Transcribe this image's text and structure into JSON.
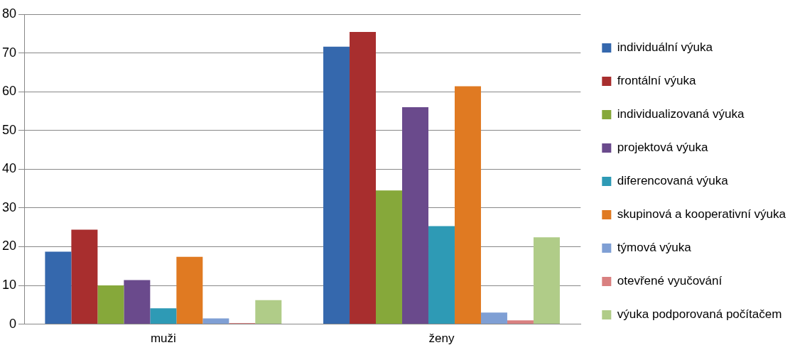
{
  "chart_data": {
    "type": "bar",
    "categories": [
      "muži",
      "ženy"
    ],
    "series": [
      {
        "name": "individuální výuka",
        "color": "#3568ad",
        "values": [
          18.7,
          71.6
        ]
      },
      {
        "name": "frontální výuka",
        "color": "#a82e2e",
        "values": [
          24.4,
          75.4
        ]
      },
      {
        "name": "individualizovaná výuka",
        "color": "#86a83a",
        "values": [
          10.0,
          34.5
        ]
      },
      {
        "name": "projektová výuka",
        "color": "#6a4a8c",
        "values": [
          11.4,
          56.0
        ]
      },
      {
        "name": "diferencovaná výuka",
        "color": "#2e9ab5",
        "values": [
          4.1,
          25.3
        ]
      },
      {
        "name": "skupinová a kooperativní výuka",
        "color": "#e07a22",
        "values": [
          17.4,
          61.4
        ]
      },
      {
        "name": "týmová výuka",
        "color": "#7f9fd4",
        "values": [
          1.5,
          3.0
        ]
      },
      {
        "name": "otevřené vyučování",
        "color": "#d98080",
        "values": [
          0.3,
          1.0
        ]
      },
      {
        "name": "výuka podporovaná počítačem",
        "color": "#b0cc88",
        "values": [
          6.2,
          22.4
        ]
      }
    ],
    "ylim": [
      0,
      80
    ],
    "yticks": [
      0,
      10,
      20,
      30,
      40,
      50,
      60,
      70,
      80
    ],
    "grid": "y",
    "legend": "right"
  }
}
